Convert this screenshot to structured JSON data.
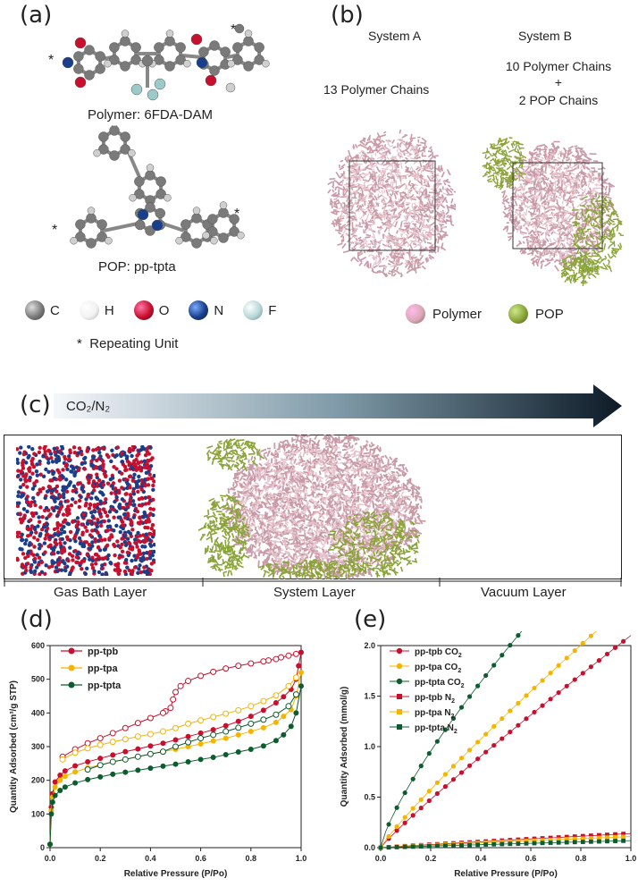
{
  "panel_a": {
    "label": "(a)",
    "polymer_caption": "Polymer: 6FDA-DAM",
    "pop_caption": "POP: pp-tpta",
    "atoms": [
      {
        "symbol": "C",
        "color": "#7a7a7a"
      },
      {
        "symbol": "H",
        "color": "#f2f2f2"
      },
      {
        "symbol": "O",
        "color": "#c8102e"
      },
      {
        "symbol": "N",
        "color": "#1a3f8a"
      },
      {
        "symbol": "F",
        "color": "#b8d8d8"
      }
    ],
    "repeating_unit": "Repeating Unit",
    "star": "*"
  },
  "panel_b": {
    "label": "(b)",
    "system_a_title": "System A",
    "system_a_desc": "13 Polymer Chains",
    "system_b_title": "System B",
    "system_b_line1": "10 Polymer Chains",
    "system_b_plus": "+",
    "system_b_line2": "2 POP Chains",
    "legend": [
      {
        "name": "Polymer",
        "color": "#d9a8b4"
      },
      {
        "name": "POP",
        "color": "#8ba43a"
      }
    ]
  },
  "panel_c": {
    "label": "(c)",
    "gas_label": "CO₂/N₂",
    "layers": [
      "Gas Bath Layer",
      "System Layer",
      "Vacuum Layer"
    ]
  },
  "colors": {
    "tpb": "#c8102e",
    "tpa": "#f5b400",
    "tpta": "#0d5c2e",
    "polymer": "#d9a8b4",
    "pop": "#8ba43a"
  },
  "chart_data": [
    {
      "panel": "(d)",
      "type": "scatter",
      "xlabel": "Relative Pressure (P/Po)",
      "ylabel": "Quantity Adsorbed (cm³/g STP)",
      "xlim": [
        0,
        1.0
      ],
      "ylim": [
        0,
        600
      ],
      "xticks": [
        "0.0",
        "0.2",
        "0.4",
        "0.6",
        "0.8",
        "1.0"
      ],
      "yticks": [
        "0",
        "100",
        "200",
        "300",
        "400",
        "500",
        "600"
      ],
      "legend": "top-left",
      "series": [
        {
          "name": "pp-tpb",
          "color": "#c8102e",
          "adsorption": {
            "x": [
              0.0,
              0.005,
              0.01,
              0.02,
              0.04,
              0.06,
              0.1,
              0.15,
              0.2,
              0.25,
              0.3,
              0.35,
              0.4,
              0.45,
              0.5,
              0.55,
              0.6,
              0.65,
              0.7,
              0.75,
              0.8,
              0.85,
              0.9,
              0.93,
              0.96,
              0.98,
              0.99,
              1.0
            ],
            "y": [
              10,
              120,
              160,
              195,
              215,
              228,
              243,
              255,
              265,
              275,
              285,
              293,
              302,
              310,
              320,
              330,
              340,
              350,
              362,
              375,
              390,
              408,
              430,
              448,
              470,
              500,
              540,
              580
            ]
          },
          "desorption": {
            "x": [
              0.98,
              0.95,
              0.92,
              0.9,
              0.87,
              0.85,
              0.8,
              0.75,
              0.7,
              0.65,
              0.6,
              0.55,
              0.52,
              0.5,
              0.49,
              0.48,
              0.46,
              0.45,
              0.4,
              0.35,
              0.3,
              0.25,
              0.2,
              0.15,
              0.1,
              0.05
            ],
            "y": [
              575,
              570,
              565,
              560,
              556,
              553,
              547,
              540,
              532,
              522,
              510,
              495,
              480,
              462,
              440,
              415,
              405,
              400,
              385,
              370,
              355,
              340,
              325,
              310,
              292,
              270
            ]
          }
        },
        {
          "name": "pp-tpa",
          "color": "#f5b400",
          "adsorption": {
            "x": [
              0.0,
              0.005,
              0.01,
              0.02,
              0.04,
              0.06,
              0.1,
              0.15,
              0.2,
              0.25,
              0.3,
              0.35,
              0.4,
              0.45,
              0.5,
              0.55,
              0.6,
              0.65,
              0.7,
              0.75,
              0.8,
              0.85,
              0.9,
              0.93,
              0.96,
              0.98,
              1.0
            ],
            "y": [
              10,
              110,
              150,
              180,
              200,
              212,
              225,
              237,
              246,
              255,
              263,
              270,
              278,
              285,
              292,
              300,
              308,
              317,
              325,
              335,
              345,
              356,
              372,
              390,
              410,
              450,
              520
            ]
          },
          "desorption": {
            "x": [
              0.98,
              0.95,
              0.9,
              0.85,
              0.8,
              0.75,
              0.7,
              0.65,
              0.6,
              0.55,
              0.5,
              0.45,
              0.4,
              0.35,
              0.3,
              0.25,
              0.2,
              0.15,
              0.1,
              0.05
            ],
            "y": [
              505,
              480,
              452,
              435,
              420,
              408,
              398,
              388,
              378,
              368,
              355,
              345,
              337,
              330,
              322,
              314,
              305,
              295,
              282,
              262
            ]
          }
        },
        {
          "name": "pp-tpta",
          "color": "#0d5c2e",
          "adsorption": {
            "x": [
              0.0,
              0.005,
              0.01,
              0.02,
              0.04,
              0.06,
              0.1,
              0.15,
              0.2,
              0.25,
              0.3,
              0.35,
              0.4,
              0.45,
              0.5,
              0.55,
              0.6,
              0.65,
              0.7,
              0.75,
              0.8,
              0.85,
              0.9,
              0.93,
              0.96,
              0.98,
              1.0
            ],
            "y": [
              10,
              100,
              135,
              155,
              170,
              180,
              192,
              202,
              210,
              218,
              224,
              230,
              236,
              242,
              248,
              255,
              262,
              268,
              276,
              284,
              292,
              302,
              318,
              335,
              360,
              400,
              480
            ]
          },
          "desorption": {
            "x": [
              0.98,
              0.95,
              0.9,
              0.85,
              0.8,
              0.75,
              0.7,
              0.65,
              0.6,
              0.55,
              0.5,
              0.45,
              0.4,
              0.35,
              0.3,
              0.25,
              0.2,
              0.15
            ],
            "y": [
              455,
              420,
              395,
              380,
              368,
              356,
              345,
              335,
              325,
              313,
              300,
              285,
              278,
              270,
              262,
              255,
              245,
              232
            ]
          }
        }
      ]
    },
    {
      "panel": "(e)",
      "type": "line",
      "xlabel": "Relative Pressure (P/Po)",
      "ylabel": "Quantity Adsorbed (mmol/g)",
      "xlim": [
        0,
        1.0
      ],
      "ylim": [
        0,
        2.0
      ],
      "xticks": [
        "0.0",
        "0.2",
        "0.4",
        "0.6",
        "0.8",
        "1.0"
      ],
      "yticks": [
        "0.0",
        "0.5",
        "1.0",
        "1.5",
        "2.0"
      ],
      "legend": "top-left",
      "series": [
        {
          "name": "pp-tpb CO",
          "sub": "2",
          "marker": "circle",
          "color": "#c8102e",
          "k": 2.1,
          "n": 0.92
        },
        {
          "name": "pp-tpa CO",
          "sub": "2",
          "marker": "circle",
          "color": "#f5b400",
          "k": 2.45,
          "n": 0.9
        },
        {
          "name": "pp-tpta CO",
          "sub": "2",
          "marker": "circle",
          "color": "#0d5c2e",
          "k": 3.35,
          "n": 0.78
        },
        {
          "name": "pp-tpb N",
          "sub": "2",
          "marker": "square",
          "color": "#c8102e",
          "k": 0.14,
          "n": 0.95
        },
        {
          "name": "pp-tpa N",
          "sub": "2",
          "marker": "square",
          "color": "#f5b400",
          "k": 0.11,
          "n": 0.95
        },
        {
          "name": "pp-tpta N",
          "sub": "2",
          "marker": "square",
          "color": "#0d5c2e",
          "k": 0.07,
          "n": 0.95
        }
      ]
    }
  ]
}
